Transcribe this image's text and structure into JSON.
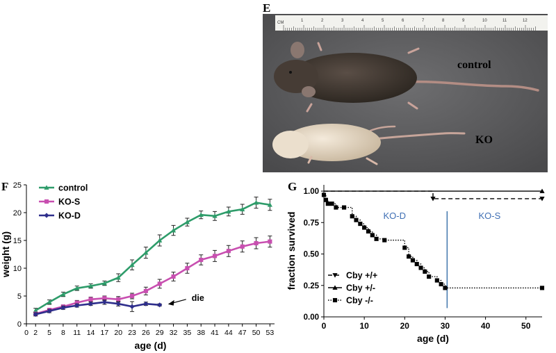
{
  "panels": {
    "E": {
      "letter": "E",
      "ruler_label": "CM",
      "ruler_numbers": [
        "1",
        "2",
        "3",
        "4",
        "5",
        "6",
        "7",
        "8",
        "9",
        "10",
        "11",
        "12"
      ],
      "labels": [
        "control",
        "KO"
      ]
    },
    "F": {
      "letter": "F"
    },
    "G": {
      "letter": "G"
    }
  },
  "colors": {
    "control": "#2e9c6a",
    "KO-S": "#c84fb0",
    "KO-D": "#2e2e8c",
    "annotation_blue": "#3f6fb4",
    "divider": "#4a7db0"
  },
  "chart_data": [
    {
      "id": "F",
      "type": "line",
      "xlabel": "age (d)",
      "ylabel": "weight (g)",
      "xticks": [
        0,
        2,
        5,
        8,
        11,
        14,
        17,
        20,
        23,
        26,
        29,
        32,
        35,
        38,
        41,
        44,
        47,
        50,
        53
      ],
      "yticks": [
        0,
        5,
        10,
        15,
        20,
        25
      ],
      "xlim": [
        0,
        54
      ],
      "ylim": [
        0,
        25
      ],
      "legend_position": "top-left",
      "series": [
        {
          "name": "control",
          "marker": "triangle",
          "x": [
            2,
            5,
            8,
            11,
            14,
            17,
            20,
            23,
            26,
            29,
            32,
            35,
            38,
            41,
            44,
            47,
            50,
            53
          ],
          "y": [
            2.4,
            3.9,
            5.3,
            6.4,
            6.8,
            7.3,
            8.3,
            10.6,
            12.8,
            15.0,
            16.8,
            18.3,
            19.6,
            19.4,
            20.2,
            20.6,
            21.8,
            21.4
          ],
          "err": [
            0.4,
            0.4,
            0.4,
            0.4,
            0.4,
            0.4,
            0.7,
            0.9,
            1.0,
            1.0,
            0.9,
            0.7,
            0.7,
            0.8,
            0.8,
            0.9,
            1.0,
            1.0
          ]
        },
        {
          "name": "KO-S",
          "marker": "square",
          "x": [
            2,
            5,
            8,
            11,
            14,
            17,
            20,
            23,
            26,
            29,
            32,
            35,
            38,
            41,
            44,
            47,
            50,
            53
          ],
          "y": [
            1.8,
            2.5,
            3.1,
            3.8,
            4.4,
            4.6,
            4.4,
            5.0,
            5.9,
            7.2,
            8.5,
            10.0,
            11.5,
            12.2,
            13.1,
            13.9,
            14.5,
            14.8
          ],
          "err": [
            0.3,
            0.3,
            0.3,
            0.4,
            0.4,
            0.4,
            0.5,
            0.5,
            0.7,
            0.8,
            0.8,
            0.9,
            0.9,
            1.0,
            1.0,
            1.0,
            1.0,
            1.0
          ]
        },
        {
          "name": "KO-D",
          "marker": "diamond",
          "x": [
            2,
            5,
            8,
            11,
            14,
            17,
            20,
            23,
            26,
            29
          ],
          "y": [
            1.7,
            2.3,
            2.9,
            3.3,
            3.6,
            3.9,
            3.6,
            3.1,
            3.6,
            3.4
          ],
          "err": [
            0.3,
            0.3,
            0.3,
            0.3,
            0.3,
            0.4,
            0.4,
            0.9,
            0.3,
            0.2
          ]
        }
      ],
      "annotations": [
        {
          "text": "die",
          "x": 29,
          "y": 3.4
        }
      ]
    },
    {
      "id": "G",
      "type": "line",
      "xlabel": "age (d)",
      "ylabel": "fraction survived",
      "xticks": [
        0,
        10,
        20,
        30,
        40,
        50
      ],
      "yticks": [
        "0.00",
        "0.25",
        "0.50",
        "0.75",
        "1.00"
      ],
      "xlim": [
        0,
        54
      ],
      "ylim": [
        0,
        1.05
      ],
      "legend_position": "bottom-left",
      "region_labels": [
        {
          "text": "KO-D",
          "x": 17.5,
          "y": 0.78
        },
        {
          "text": "KO-S",
          "x": 41,
          "y": 0.78
        }
      ],
      "divider_x": 30.5,
      "series": [
        {
          "name": "Cby +/+",
          "style": "dashed",
          "marker": "triangle-down",
          "x": [
            0,
            27,
            27,
            54
          ],
          "y": [
            1.0,
            1.0,
            0.94,
            0.94
          ]
        },
        {
          "name": "Cby +/-",
          "style": "solid",
          "marker": "triangle",
          "x": [
            0,
            54
          ],
          "y": [
            1.0,
            1.0
          ]
        },
        {
          "name": "Cby -/-",
          "style": "dotted-step",
          "marker": "square",
          "x": [
            0,
            0.5,
            1,
            2,
            3,
            5,
            7,
            8,
            9,
            10,
            11,
            12,
            13,
            15,
            20,
            21,
            22,
            23,
            24,
            25,
            26,
            28,
            29,
            30,
            31,
            54
          ],
          "y": [
            0.97,
            0.93,
            0.9,
            0.9,
            0.87,
            0.87,
            0.8,
            0.77,
            0.74,
            0.71,
            0.68,
            0.65,
            0.62,
            0.61,
            0.55,
            0.48,
            0.45,
            0.42,
            0.39,
            0.36,
            0.32,
            0.29,
            0.26,
            0.23,
            0.23,
            0.23
          ]
        }
      ]
    }
  ]
}
